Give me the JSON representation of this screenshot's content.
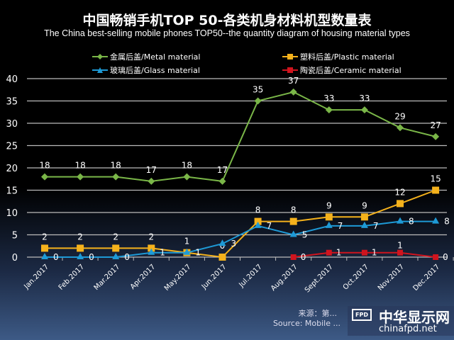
{
  "chart_data": {
    "type": "line",
    "title": "中国畅销手机TOP 50-各类机身材料机型数量表",
    "subtitle": "The China best-selling mobile phones TOP50--the quantity diagram of housing material types",
    "categories": [
      "Jan.2017",
      "Feb.2017",
      "Mar.2017",
      "Apr.2017",
      "May.2017",
      "Jun.2017",
      "Jul.2017",
      "Aug.2017",
      "Sept.2017",
      "Oct.2017",
      "Nov.2017",
      "Dec.2017"
    ],
    "ylim": [
      0,
      40
    ],
    "yticks": [
      0,
      5,
      10,
      15,
      20,
      25,
      30,
      35,
      40
    ],
    "grid": true,
    "legend_placement": "top",
    "series": [
      {
        "name": "金属后盖/Metal material",
        "color": "#7ab648",
        "marker": "diamond",
        "values": [
          18,
          18,
          18,
          17,
          18,
          17,
          35,
          37,
          33,
          33,
          29,
          27
        ]
      },
      {
        "name": "塑料后盖/Plastic material",
        "color": "#f5b21c",
        "marker": "square",
        "values": [
          2,
          2,
          2,
          2,
          1,
          0,
          8,
          8,
          9,
          9,
          12,
          15
        ]
      },
      {
        "name": "玻璃后盖/Glass material",
        "color": "#1e9ad6",
        "marker": "triangle",
        "values": [
          0,
          0,
          0,
          1,
          1,
          3,
          7,
          5,
          7,
          7,
          8,
          8
        ]
      },
      {
        "name": "陶瓷后盖/Ceramic material",
        "color": "#d0141e",
        "marker": "square",
        "values": [
          null,
          null,
          null,
          null,
          null,
          null,
          null,
          0,
          1,
          1,
          1,
          0
        ]
      }
    ]
  },
  "source": {
    "cn": "来源：第...",
    "en": "Source: Mobile ..."
  },
  "watermark": {
    "badge": "FPD",
    "cn": "中华显示网",
    "en": "chinafpd.net"
  }
}
